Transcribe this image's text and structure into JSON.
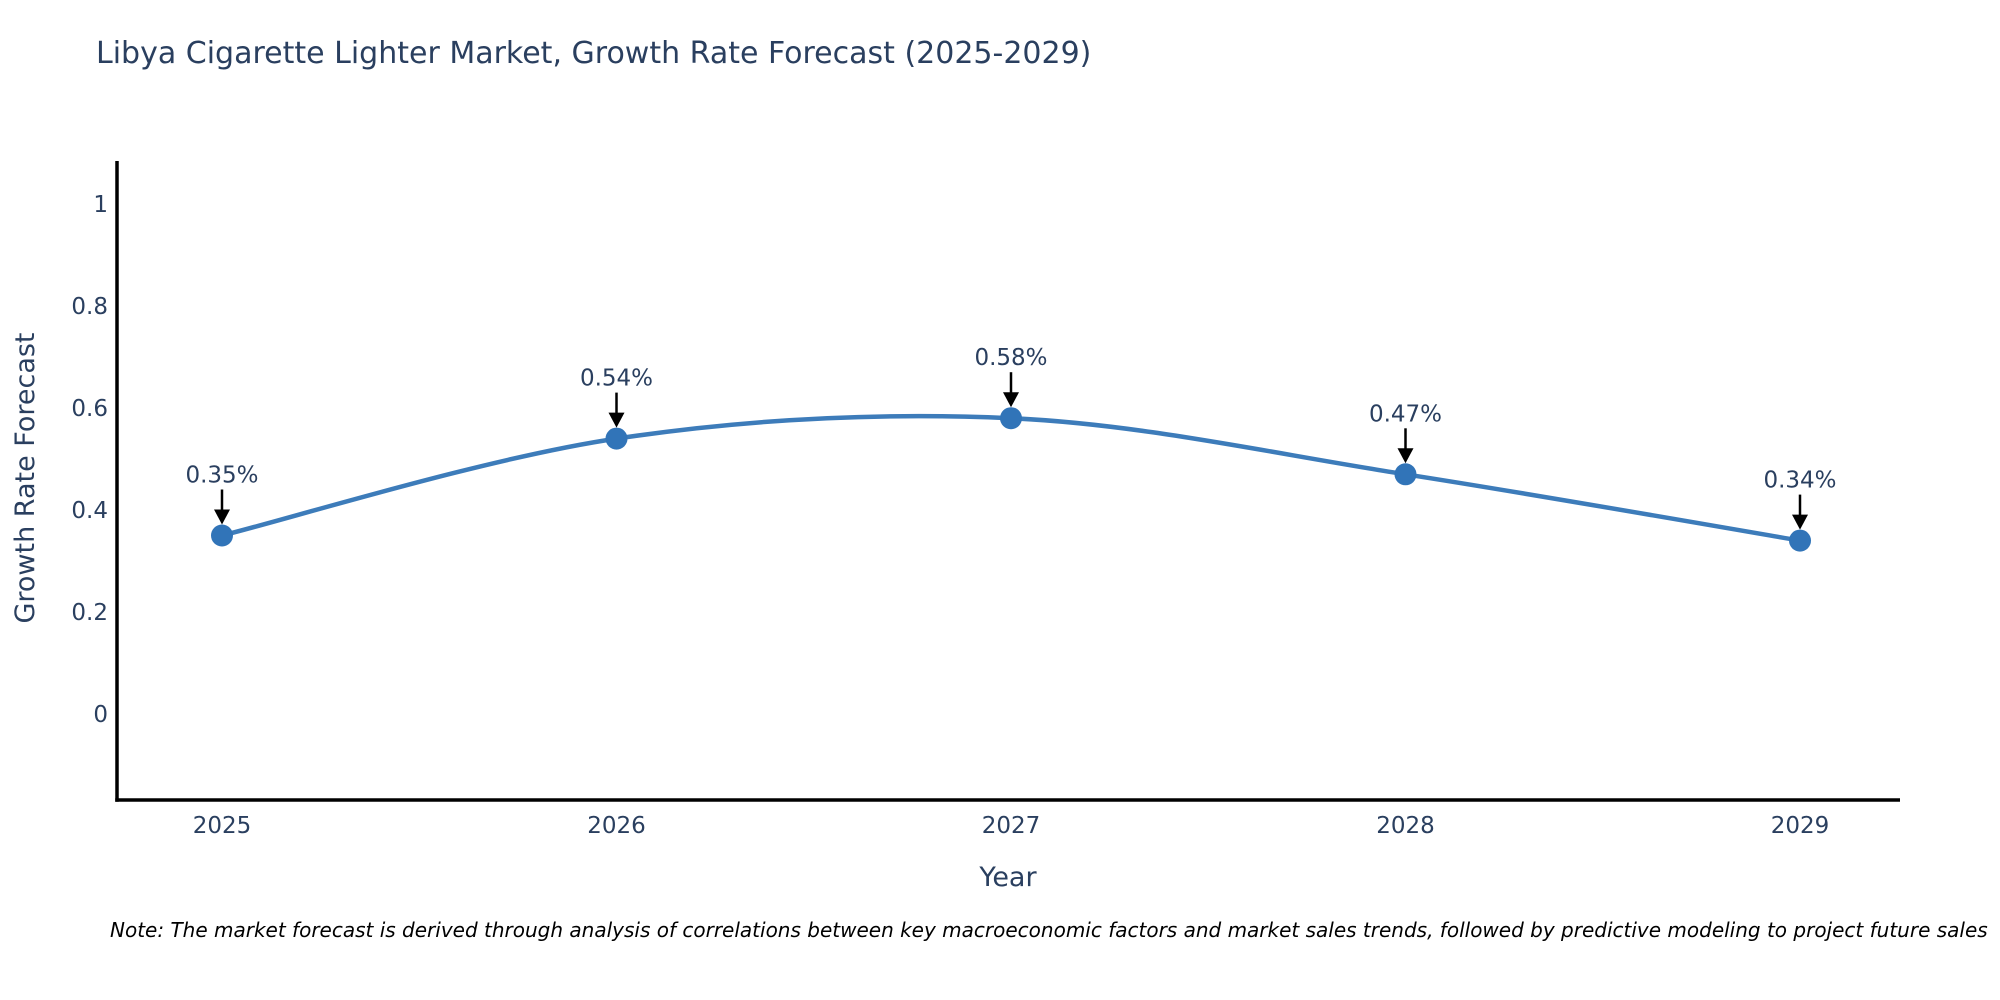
{
  "chart_data": {
    "type": "line",
    "title": "Libya Cigarette Lighter Market, Growth Rate Forecast (2025-2029)",
    "xlabel": "Year",
    "ylabel": "Growth Rate Forecast",
    "x": [
      2025,
      2026,
      2027,
      2028,
      2029
    ],
    "values": [
      0.35,
      0.54,
      0.58,
      0.47,
      0.34
    ],
    "point_labels": [
      "0.35%",
      "0.54%",
      "0.58%",
      "0.47%",
      "0.34%"
    ],
    "y_ticks": [
      0,
      0.2,
      0.4,
      0.6,
      0.8,
      1
    ],
    "y_tick_labels": [
      "0",
      "0.2",
      "0.4",
      "0.6",
      "0.8",
      "1"
    ],
    "ylim": [
      -0.17,
      1.09
    ],
    "line_shape": "spline",
    "grid": false,
    "legend": "none",
    "markers": true,
    "annotations_have_arrows": true,
    "colors": {
      "line": "#3d7cba",
      "marker": "#3174b8",
      "text": "#2a3f5f",
      "axis": "#000000",
      "arrow": "#000000",
      "background": "#ffffff"
    }
  },
  "note": {
    "text": "Note: The market forecast is derived through analysis of correlations between key macroeconomic factors and market sales trends, followed by predictive modeling to project future sales"
  }
}
